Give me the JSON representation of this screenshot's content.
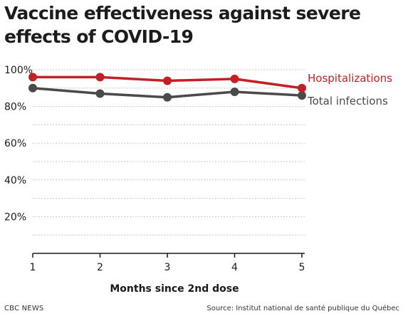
{
  "chart_data": {
    "type": "line",
    "title": "Vaccine effectiveness against severe effects of COVID-19",
    "xlabel": "Months since 2nd dose",
    "ylabel": "",
    "x": [
      1,
      2,
      3,
      4,
      5
    ],
    "xlim": [
      1,
      5
    ],
    "ylim": [
      0,
      100
    ],
    "yticks": [
      "20%",
      "40%",
      "60%",
      "80%",
      "100%"
    ],
    "ytick_values": [
      20,
      40,
      60,
      80,
      100
    ],
    "grid": true,
    "series": [
      {
        "name": "Hospitalizations",
        "values": [
          96,
          96,
          94,
          95,
          90
        ],
        "color": "#c22026"
      },
      {
        "name": "Total infections",
        "values": [
          90,
          87,
          85,
          88,
          86
        ],
        "color": "#4a4a4a"
      }
    ]
  },
  "credit": "CBC NEWS",
  "source": "Source: Institut national de santé publique du Québec"
}
